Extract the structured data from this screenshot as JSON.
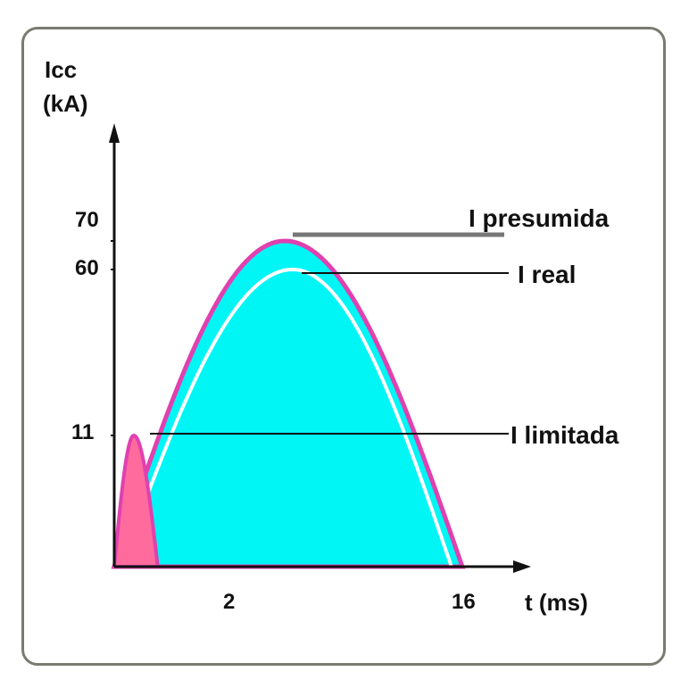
{
  "chart_data": {
    "type": "area",
    "ylabel": [
      "Icc",
      "(kA)"
    ],
    "xlabel": "t (ms)",
    "y_ticks": [
      "70",
      "60",
      "11"
    ],
    "x_ticks": [
      "2",
      "16"
    ],
    "annotations": [
      {
        "text": "I presumida",
        "value": 70
      },
      {
        "text": "I real",
        "value": 60
      },
      {
        "text": "I limitada",
        "value": 11
      }
    ],
    "series": [
      {
        "name": "I presumida",
        "peak": 70,
        "t_start": 0,
        "t_end": 16,
        "color": "#e040b0",
        "fill": "#00f5f5"
      },
      {
        "name": "I real",
        "peak": 60,
        "t_start": 0.3,
        "t_end": 15.5,
        "color": "#ffffff"
      },
      {
        "name": "I limitada",
        "peak": 11,
        "t_start": 0,
        "t_end": 2,
        "color": "#e040b0",
        "fill": "#ff6b9c"
      }
    ],
    "colors": {
      "axis": "#111111",
      "leader": "#111111",
      "presumida_leader": "#777777"
    }
  }
}
